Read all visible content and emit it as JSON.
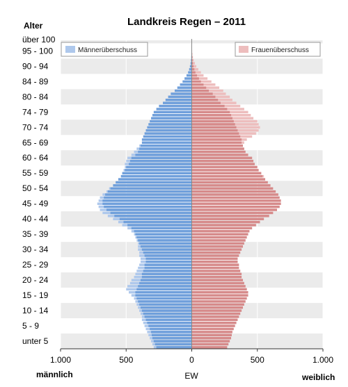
{
  "chart_data": {
    "type": "bar",
    "subtype": "population-pyramid",
    "title": "Landkreis Regen – 2011",
    "age_axis_label": "Alter",
    "x_axis_label": "EW",
    "left_label": "männlich",
    "right_label": "weiblich",
    "age_groups": [
      "unter 5",
      "5 - 9",
      "10 - 14",
      "15 - 19",
      "20 - 24",
      "25 - 29",
      "30 - 34",
      "35 - 39",
      "40 - 44",
      "45 - 49",
      "50 - 54",
      "55 - 59",
      "60 - 64",
      "65 - 69",
      "70 - 74",
      "74 - 79",
      "80 - 84",
      "84 - 89",
      "90 - 94",
      "95 - 100",
      "über 100"
    ],
    "x_ticks": [
      {
        "value": -1000,
        "label": "1.000"
      },
      {
        "value": -500,
        "label": "500"
      },
      {
        "value": 0,
        "label": "0"
      },
      {
        "value": 500,
        "label": "500"
      },
      {
        "value": 1000,
        "label": "1.000"
      }
    ],
    "xlim": [
      -1000,
      1000
    ],
    "ylim": [
      0,
      101
    ],
    "bins": "single years of age, 0 (bottom) to 100 (top)",
    "legend": [
      "Männerüberschuss",
      "Frauenüberschuss"
    ],
    "colors": {
      "male": "#6F9FDB",
      "female": "#D68A8A",
      "male_surplus": "#AEC8EC",
      "female_surplus": "#EDBDBD",
      "band": "#EBEBEB"
    },
    "male": [
      290,
      300,
      310,
      320,
      330,
      340,
      350,
      360,
      370,
      380,
      380,
      390,
      400,
      410,
      420,
      430,
      440,
      460,
      480,
      500,
      490,
      470,
      460,
      440,
      430,
      420,
      410,
      400,
      390,
      390,
      400,
      400,
      410,
      410,
      410,
      420,
      430,
      440,
      460,
      490,
      530,
      560,
      600,
      640,
      680,
      700,
      710,
      720,
      710,
      700,
      680,
      650,
      630,
      600,
      580,
      560,
      540,
      530,
      520,
      510,
      510,
      500,
      490,
      460,
      440,
      420,
      400,
      380,
      380,
      370,
      360,
      350,
      340,
      330,
      320,
      310,
      300,
      290,
      270,
      250,
      220,
      200,
      180,
      160,
      130,
      110,
      90,
      70,
      55,
      40,
      28,
      20,
      14,
      9,
      6,
      4,
      3,
      2,
      1,
      1,
      1
    ],
    "female": [
      270,
      280,
      290,
      300,
      305,
      310,
      320,
      330,
      340,
      350,
      360,
      370,
      380,
      390,
      400,
      410,
      420,
      430,
      430,
      420,
      410,
      400,
      390,
      380,
      380,
      370,
      360,
      360,
      350,
      350,
      360,
      370,
      380,
      390,
      400,
      410,
      420,
      430,
      440,
      460,
      490,
      520,
      550,
      590,
      620,
      650,
      670,
      680,
      680,
      670,
      660,
      640,
      620,
      600,
      580,
      560,
      550,
      530,
      510,
      500,
      480,
      470,
      460,
      430,
      410,
      400,
      390,
      400,
      420,
      460,
      490,
      510,
      520,
      510,
      500,
      470,
      450,
      430,
      400,
      370,
      340,
      310,
      290,
      260,
      240,
      210,
      180,
      150,
      120,
      90,
      70,
      50,
      35,
      24,
      15,
      9,
      5,
      3,
      2,
      1,
      1
    ]
  }
}
